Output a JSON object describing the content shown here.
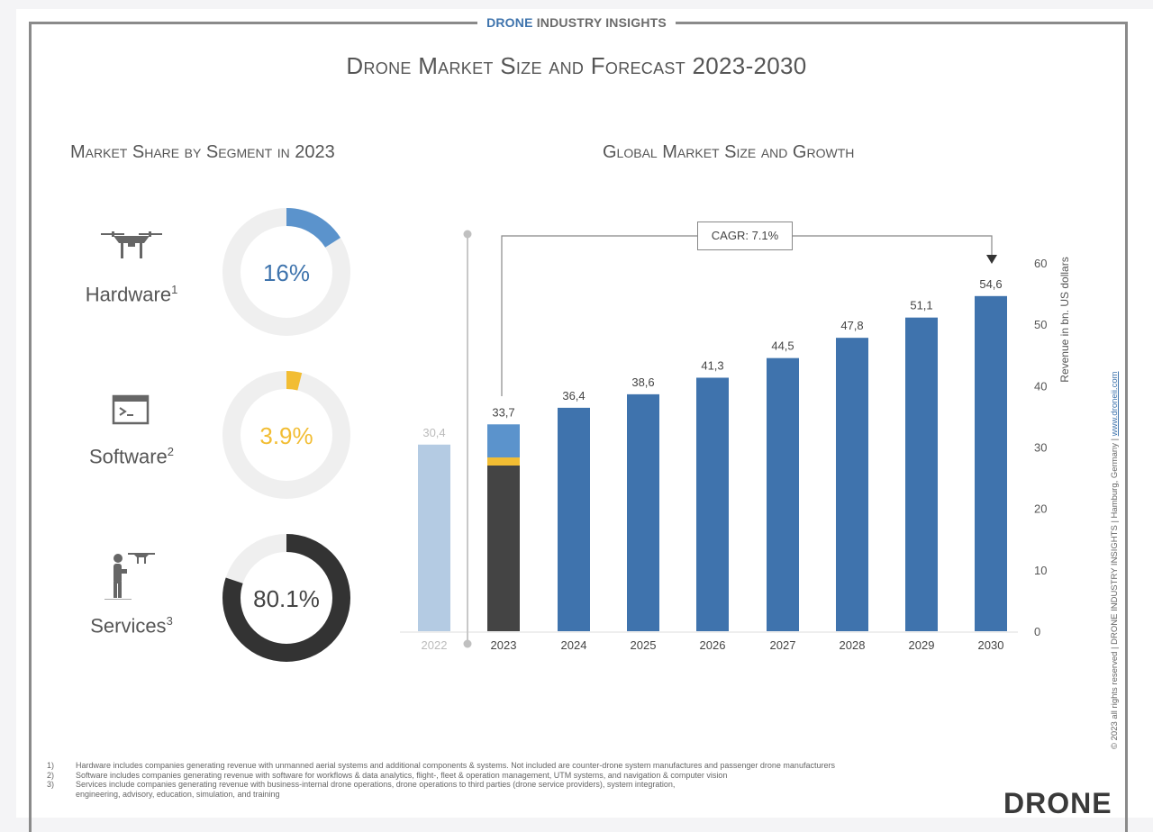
{
  "header": {
    "brand_part1": "DRONE ",
    "brand_part2": "INDUSTRY ",
    "brand_part3": "INSIGHTS",
    "title": "Drone Market Size and Forecast 2023-2030"
  },
  "left_panel": {
    "heading": "Market Share by Segment in 2023",
    "segments": [
      {
        "label": "Hardware",
        "footnote": "1",
        "value_label": "16%",
        "share": 16.0,
        "color": "#5b93cc",
        "icon": "drone-icon"
      },
      {
        "label": "Software",
        "footnote": "2",
        "value_label": "3.9%",
        "share": 3.9,
        "color": "#f2bd33",
        "icon": "terminal-window-icon"
      },
      {
        "label": "Services",
        "footnote": "3",
        "value_label": "80.1%",
        "share": 80.1,
        "color": "#333333",
        "icon": "drone-pilot-icon"
      }
    ],
    "track_color": "#efefef"
  },
  "right_panel": {
    "heading": "Global Market Size and Growth",
    "cagr_label": "CAGR: 7.1%"
  },
  "chart_data": {
    "type": "bar",
    "title": "Global Market Size and Growth",
    "xlabel": "",
    "ylabel": "Revenue in bn. US dollars",
    "ylim": [
      0,
      60
    ],
    "yticks": [
      0,
      10,
      20,
      30,
      40,
      50,
      60
    ],
    "grid": false,
    "y_axis_position": "right",
    "categories": [
      "2022",
      "2023",
      "2024",
      "2025",
      "2026",
      "2027",
      "2028",
      "2029",
      "2030"
    ],
    "values": [
      30.4,
      33.7,
      36.4,
      38.6,
      41.3,
      44.5,
      47.8,
      51.1,
      54.6
    ],
    "value_labels": [
      "30,4",
      "33,7",
      "36,4",
      "38,6",
      "41,3",
      "44,5",
      "47,8",
      "51,1",
      "54,6"
    ],
    "colors": {
      "historic": "#b4cbe3",
      "forecast": "#3f73ad",
      "hardware": "#5b93cc",
      "software": "#f2bd33",
      "services": "#444444"
    },
    "stacked_2023": [
      {
        "segment": "Services",
        "share_pct": 80.1
      },
      {
        "segment": "Software",
        "share_pct": 3.9
      },
      {
        "segment": "Hardware",
        "share_pct": 16.0
      }
    ],
    "annotation": {
      "text": "CAGR: 7.1%",
      "from": "2023",
      "to": "2030"
    }
  },
  "footnotes": [
    {
      "n": "1)",
      "text": "Hardware includes companies generating revenue with unmanned aerial systems and additional components & systems. Not included are counter-drone system manufactures and passenger drone manufacturers"
    },
    {
      "n": "2)",
      "text": "Software includes companies generating revenue with software for workflows & data analytics, flight-, fleet & operation management, UTM systems, and navigation & computer vision"
    },
    {
      "n": "3)",
      "text": "Services include companies generating revenue with business-internal drone operations, drone operations to third parties (drone service providers), system integration,"
    },
    {
      "n": "",
      "text": "engineering, advisory, education, simulation, and training"
    }
  ],
  "side_credit": {
    "text": "© 2023 all rights reserved | DRONE INDUSTRY INSIGHTS | Hamburg, Germany | ",
    "link": "www.droneii.com"
  },
  "footer_brand": "DRONE"
}
